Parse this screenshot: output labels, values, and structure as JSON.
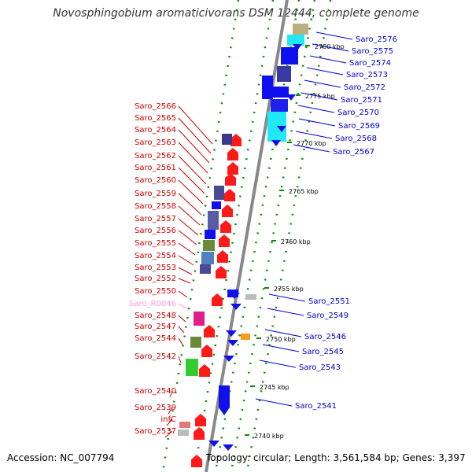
{
  "title": "Novosphingobium aromaticivorans DSM 12444, complete genome",
  "accession": "Accession: NC_007794",
  "topology": "Topology: circular; Length: 3,561,584 bp; Genes: 3,397",
  "colors": {
    "forward": "#ff1a1a",
    "reverse": "#1010ee",
    "rna": "#ff99dd",
    "label_forward": "#cc0000",
    "label_reverse": "#0000cc",
    "backbone": "#888888",
    "ticks": "#118811"
  },
  "kbp_ticks": [
    "2780 kbp",
    "2775 kbp",
    "2770 kbp",
    "2765 kbp",
    "2760 kbp",
    "2755 kbp",
    "2750 kbp",
    "2745 kbp",
    "2740 kbp"
  ],
  "left_labels": [
    "Saro_2566",
    "Saro_2565",
    "Saro_2564",
    "Saro_2563",
    "Saro_2562",
    "Saro_2561",
    "Saro_2560",
    "Saro_2559",
    "Saro_2558",
    "Saro_2557",
    "Saro_2556",
    "Saro_2555",
    "Saro_2554",
    "Saro_2553",
    "Saro_2552",
    "Saro_2550",
    "Saro_R0046",
    "Saro_2548",
    "Saro_2547",
    "Saro_2544",
    "Saro_2542",
    "Saro_2540",
    "Saro_2539",
    "infC",
    "Saro_2537"
  ],
  "right_labels": [
    "Saro_2576",
    "Saro_2575",
    "Saro_2574",
    "Saro_2573",
    "Saro_2572",
    "Saro_2571",
    "Saro_2570",
    "Saro_2569",
    "Saro_2568",
    "Saro_2567",
    "Saro_2551",
    "Saro_2549",
    "Saro_2546",
    "Saro_2545",
    "Saro_2543",
    "Saro_2541"
  ]
}
